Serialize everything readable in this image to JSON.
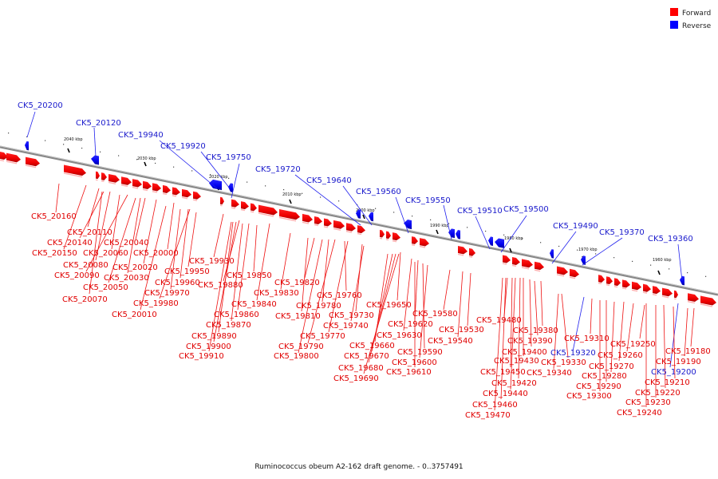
{
  "legend": {
    "forward_label": "Forward",
    "reverse_label": "Reverse",
    "forward_color": "#ff0000",
    "reverse_color": "#0000ff"
  },
  "caption": "Ruminococcus obeum A2-162 draft genome. - 0..3757491",
  "scale_ticks": [
    {
      "label": "2040 kbp"
    },
    {
      "label": "2030 kbp"
    },
    {
      "label": "2020 kbp"
    },
    {
      "label": "2010 kbp"
    },
    {
      "label": "2000 kbp"
    },
    {
      "label": "1990 kbp"
    },
    {
      "label": "1980 kbp"
    },
    {
      "label": "1970 kbp"
    },
    {
      "label": "1960 kbp"
    }
  ],
  "reverse_labels": [
    "CK5_20200",
    "CK5_20120",
    "CK5_19940",
    "CK5_19920",
    "CK5_19750",
    "CK5_19720",
    "CK5_19640",
    "CK5_19560",
    "CK5_19550",
    "CK5_19510",
    "CK5_19500",
    "CK5_19490",
    "CK5_19370",
    "CK5_19360",
    "CK5_19320",
    "CK5_19200"
  ],
  "forward_labels": [
    "CK5_20160",
    "CK5_20110",
    "CK5_20140",
    "CK5_20150",
    "CK5_20060",
    "CK5_20040",
    "CK5_20080",
    "CK5_20020",
    "CK5_20000",
    "CK5_20090",
    "CK5_20030",
    "CK5_20050",
    "CK5_20070",
    "CK5_19980",
    "CK5_20010",
    "CK5_19930",
    "CK5_19950",
    "CK5_19960",
    "CK5_19970",
    "CK5_19880",
    "CK5_19850",
    "CK5_19840",
    "CK5_19860",
    "CK5_19870",
    "CK5_19890",
    "CK5_19900",
    "CK5_19910",
    "CK5_19820",
    "CK5_19830",
    "CK5_19810",
    "CK5_19760",
    "CK5_19780",
    "CK5_19730",
    "CK5_19740",
    "CK5_19770",
    "CK5_19790",
    "CK5_19800",
    "CK5_19650",
    "CK5_19660",
    "CK5_19670",
    "CK5_19680",
    "CK5_19690",
    "CK5_19580",
    "CK5_19620",
    "CK5_19630",
    "CK5_19590",
    "CK5_19600",
    "CK5_19610",
    "CK5_19530",
    "CK5_19540",
    "CK5_19480",
    "CK5_19380",
    "CK5_19390",
    "CK5_19400",
    "CK5_19430",
    "CK5_19420",
    "CK5_19450",
    "CK5_19440",
    "CK5_19460",
    "CK5_19470",
    "CK5_19340",
    "CK5_19330",
    "CK5_19310",
    "CK5_19250",
    "CK5_19260",
    "CK5_19270",
    "CK5_19280",
    "CK5_19290",
    "CK5_19300",
    "CK5_19180",
    "CK5_19190",
    "CK5_19210",
    "CK5_19220",
    "CK5_19230",
    "CK5_19240"
  ]
}
